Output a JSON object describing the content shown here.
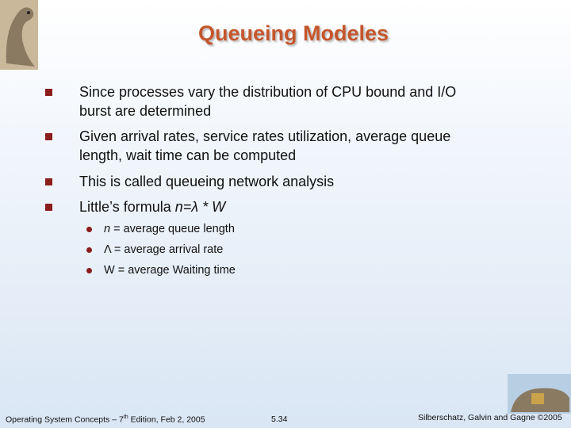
{
  "header": {
    "title": "Queueing Modeles"
  },
  "bullets": [
    {
      "lines": [
        "Since processes vary the distribution of CPU bound and I/O",
        "burst are determined"
      ]
    },
    {
      "lines": [
        "Given arrival rates, service rates utilization, average queue",
        "length, wait time can be computed"
      ]
    },
    {
      "lines": [
        "This is called queueing network analysis"
      ]
    },
    {
      "text": "Little’s formula ",
      "formula": "n=λ * W"
    }
  ],
  "sub_bullets": [
    {
      "symbol": "n",
      "text": " = average queue length"
    },
    {
      "symbol": "Λ",
      "text": " = average arrival rate"
    },
    {
      "symbol": "W",
      "text": " = average Waiting time"
    }
  ],
  "footer": {
    "left": "Operating System Concepts – 7",
    "left_sup": "th",
    "left_rest": " Edition, Feb 2, 2005",
    "center": "5.34",
    "right": "Silberschatz, Galvin and Gagne ©2005"
  }
}
